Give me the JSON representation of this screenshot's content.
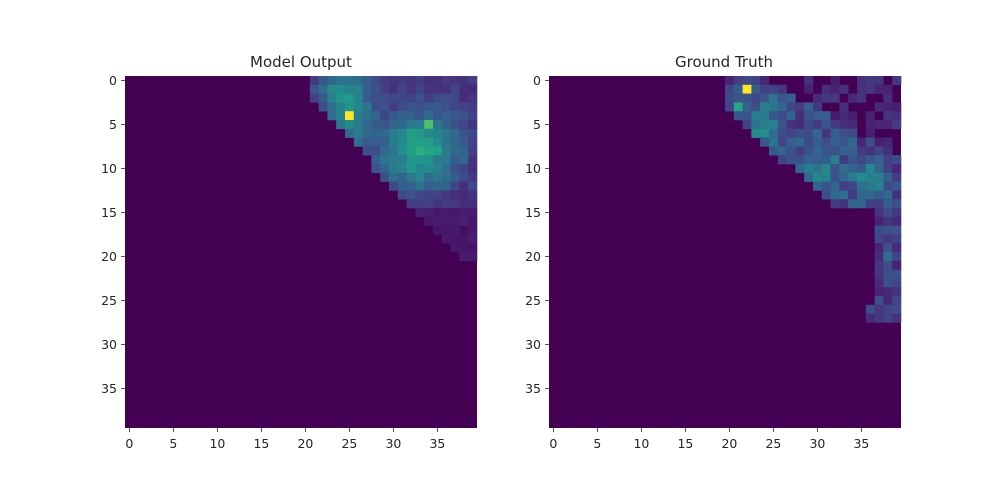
{
  "chart_data": [
    {
      "type": "heatmap",
      "title": "Model Output",
      "colormap": "viridis",
      "grid_size": 40,
      "x_ticks": [
        "0",
        "5",
        "10",
        "15",
        "20",
        "25",
        "30",
        "35"
      ],
      "y_ticks": [
        "0",
        "5",
        "10",
        "15",
        "20",
        "25",
        "30",
        "35"
      ],
      "grid": false,
      "nonzero_cells": "rows 0-20, columns 20-39 (upper-right corner)",
      "peaks": [
        {
          "row": 4,
          "col": 25,
          "value": 1.0
        },
        {
          "row": 5,
          "col": 34,
          "value": 0.85
        },
        {
          "row": 6,
          "col": 32,
          "value": 0.7
        }
      ]
    },
    {
      "type": "heatmap",
      "title": "Ground Truth",
      "colormap": "viridis",
      "grid_size": 40,
      "x_ticks": [
        "0",
        "5",
        "10",
        "15",
        "20",
        "25",
        "30",
        "35"
      ],
      "y_ticks": [
        "0",
        "5",
        "10",
        "15",
        "20",
        "25",
        "30",
        "35"
      ],
      "grid": false,
      "nonzero_cells": "diagonal band from (row 0, col 20) to (row 13, col 39), plus column 37-39 strip rows 15-27",
      "peaks": [
        {
          "row": 1,
          "col": 22,
          "value": 1.0
        },
        {
          "row": 3,
          "col": 21,
          "value": 0.75
        },
        {
          "row": 20,
          "col": 38,
          "value": 0.45
        }
      ]
    }
  ]
}
